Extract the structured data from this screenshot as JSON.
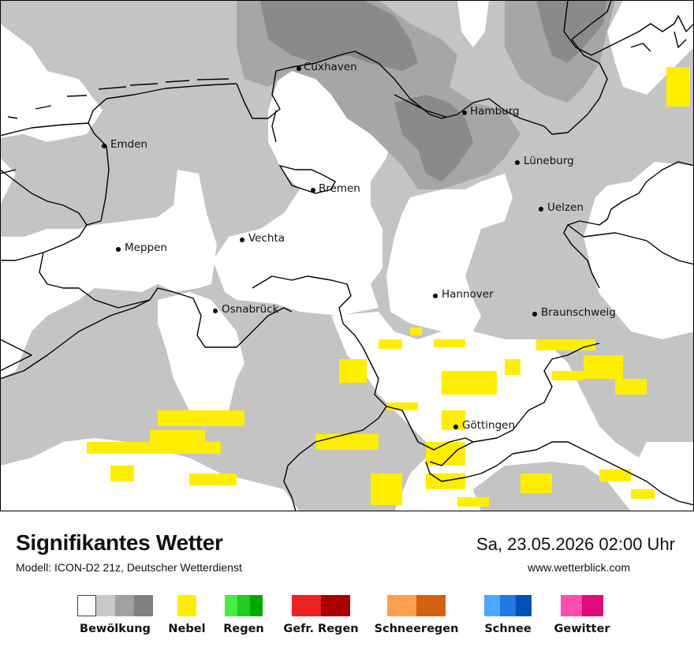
{
  "map": {
    "cities": [
      {
        "name": "Cuxhaven"
      },
      {
        "name": "Hamburg"
      },
      {
        "name": "Emden"
      },
      {
        "name": "Lüneburg"
      },
      {
        "name": "Bremen"
      },
      {
        "name": "Uelzen"
      },
      {
        "name": "Vechta"
      },
      {
        "name": "Meppen"
      },
      {
        "name": "Hannover"
      },
      {
        "name": "Osnabrück"
      },
      {
        "name": "Braunschweig"
      },
      {
        "name": "Göttingen"
      }
    ]
  },
  "footer": {
    "title": "Signifikantes Wetter",
    "model": "Modell: ICON-D2 21z, Deutscher Wetterdienst",
    "datetime": "Sa, 23.05.2026 02:00 Uhr",
    "website": "www.wetterblick.com"
  },
  "legend": [
    {
      "label": "Bewölkung",
      "colors": [
        "#ffffff",
        "#c8c8c8",
        "#a0a0a0",
        "#808080"
      ]
    },
    {
      "label": "Nebel",
      "colors": [
        "#ffee00"
      ]
    },
    {
      "label": "Regen",
      "colors": [
        "#44ee44",
        "#22cc22",
        "#00aa00"
      ]
    },
    {
      "label": "Gefr. Regen",
      "colors": [
        "#ee2222",
        "#aa0000"
      ]
    },
    {
      "label": "Schneeregen",
      "colors": [
        "#ffa050",
        "#d46010"
      ]
    },
    {
      "label": "Schnee",
      "colors": [
        "#4ea6ff",
        "#1f78e6",
        "#0050b4"
      ]
    },
    {
      "label": "Gewitter",
      "colors": [
        "#ff4cb0",
        "#e00a78"
      ]
    }
  ],
  "colors": {
    "cloud_light": "#c8c8c8",
    "cloud_medium": "#a8a8a8",
    "cloud_dark": "#8a8a8a",
    "fog": "#ffee00"
  }
}
